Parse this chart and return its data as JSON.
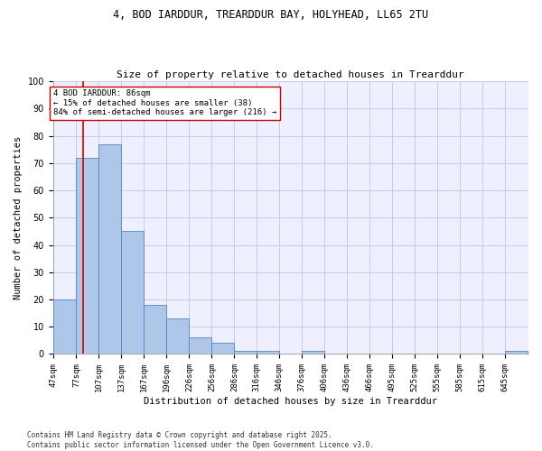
{
  "title_line1": "4, BOD IARDDUR, TREARDDUR BAY, HOLYHEAD, LL65 2TU",
  "title_line2": "Size of property relative to detached houses in Trearddur",
  "xlabel": "Distribution of detached houses by size in Trearddur",
  "ylabel": "Number of detached properties",
  "categories": [
    "47sqm",
    "77sqm",
    "107sqm",
    "137sqm",
    "167sqm",
    "196sqm",
    "226sqm",
    "256sqm",
    "286sqm",
    "316sqm",
    "346sqm",
    "376sqm",
    "406sqm",
    "436sqm",
    "466sqm",
    "495sqm",
    "525sqm",
    "555sqm",
    "585sqm",
    "615sqm",
    "645sqm"
  ],
  "values": [
    20,
    72,
    77,
    45,
    18,
    13,
    6,
    4,
    1,
    1,
    0,
    1,
    0,
    0,
    0,
    0,
    0,
    0,
    0,
    0,
    1
  ],
  "bar_color": "#aec6e8",
  "bar_edge_color": "#5585c5",
  "grid_color": "#c8c8e8",
  "bg_color": "#eef0ff",
  "red_line_color": "#cc0000",
  "annotation_text": "4 BOD IARDDUR: 86sqm\n← 15% of detached houses are smaller (38)\n84% of semi-detached houses are larger (216) →",
  "annotation_box_color": "#cc0000",
  "ylim": [
    0,
    100
  ],
  "yticks": [
    0,
    10,
    20,
    30,
    40,
    50,
    60,
    70,
    80,
    90,
    100
  ],
  "footnote": "Contains HM Land Registry data © Crown copyright and database right 2025.\nContains public sector information licensed under the Open Government Licence v3.0.",
  "bin_width": 30,
  "red_line_x": 86
}
